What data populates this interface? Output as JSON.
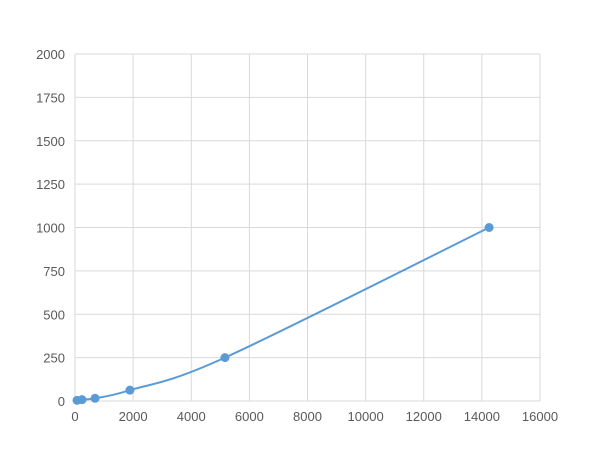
{
  "chart_data": {
    "type": "scatter",
    "title": "",
    "xlabel": "",
    "ylabel": "",
    "xlim": [
      0,
      16000
    ],
    "ylim": [
      0,
      2000
    ],
    "x_ticks": [
      0,
      2000,
      4000,
      6000,
      8000,
      10000,
      12000,
      14000,
      16000
    ],
    "y_ticks": [
      0,
      250,
      500,
      750,
      1000,
      1250,
      1500,
      1750,
      2000
    ],
    "grid": true,
    "legend": "none",
    "series": [
      {
        "x": [
          70,
          240,
          690,
          1890,
          5160,
          14250
        ],
        "y": [
          3.9,
          7.8,
          15.6,
          62.5,
          250,
          1000
        ],
        "line": "smooth",
        "color": "#5b9bd5"
      }
    ],
    "colors": {
      "series": "#5b9bd5",
      "grid": "#d9d9d9",
      "text": "#595959"
    }
  }
}
